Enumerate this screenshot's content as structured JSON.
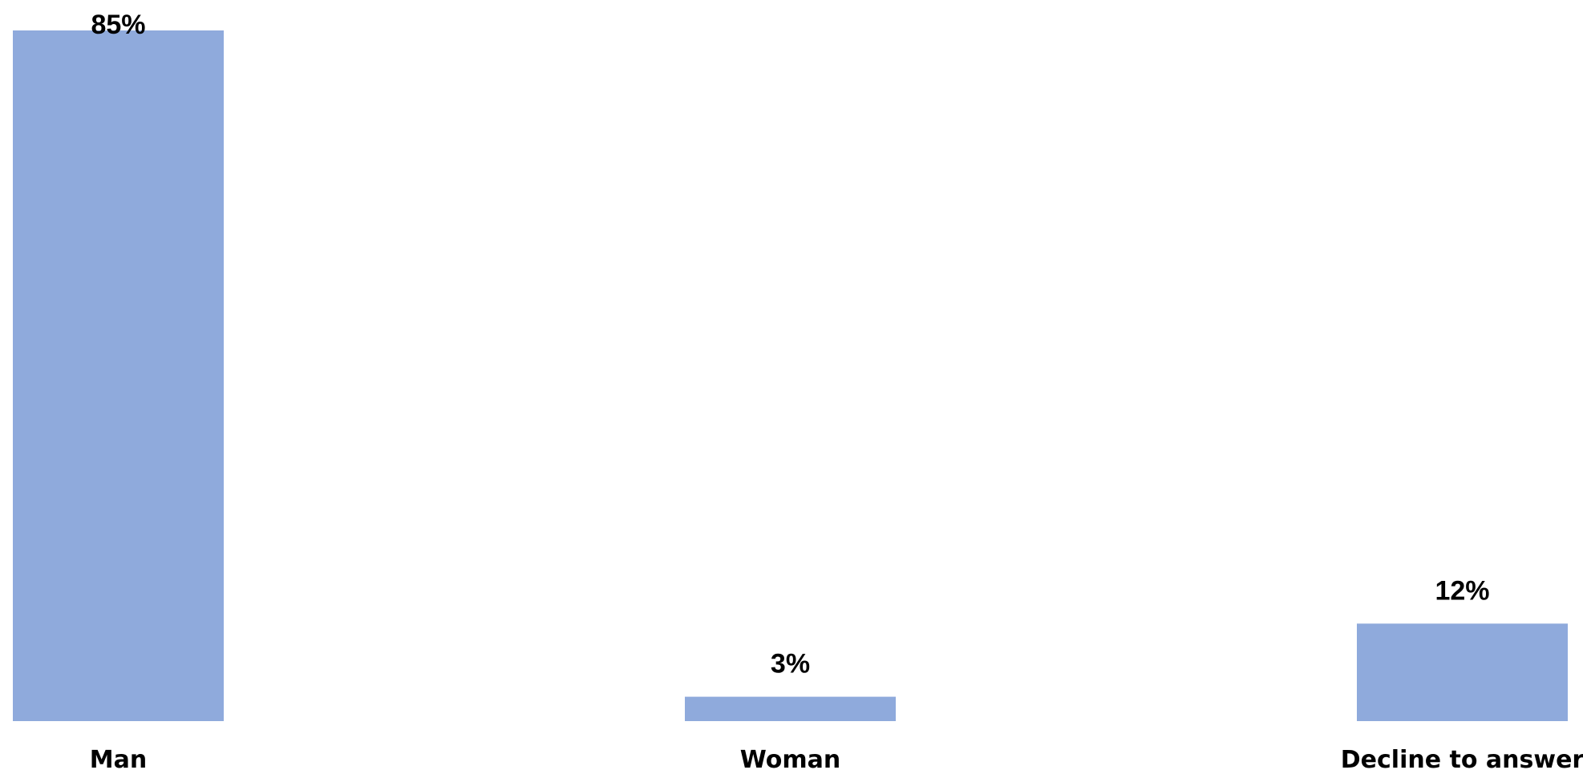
{
  "chart_data": {
    "type": "bar",
    "categories": [
      "Man",
      "Woman",
      "Decline to answer"
    ],
    "values": [
      85,
      3,
      12
    ],
    "value_labels": [
      "85%",
      "3%",
      "12%"
    ],
    "ylim": [
      0,
      85
    ],
    "grid": false,
    "bar_color": "#8faadc",
    "title": "",
    "xlabel": "",
    "ylabel": ""
  }
}
